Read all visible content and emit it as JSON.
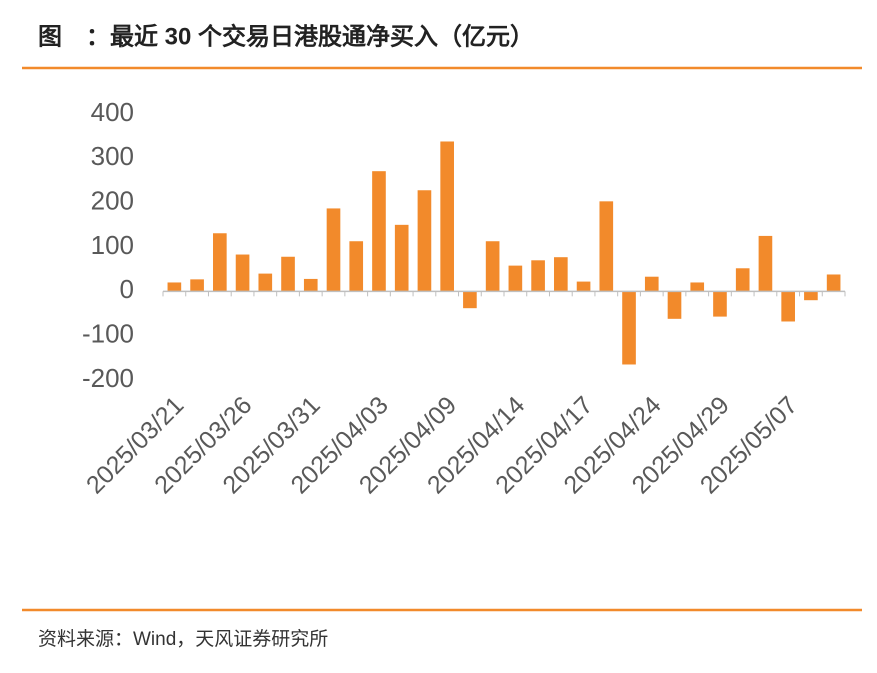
{
  "chart_data": {
    "type": "bar",
    "title": "图　：最近 30 个交易日港股通净买入（亿元）",
    "source": "资料来源：Wind，天风证券研究所",
    "categories": [
      "2025/03/21",
      null,
      null,
      "2025/03/26",
      null,
      null,
      "2025/03/31",
      null,
      null,
      "2025/04/03",
      null,
      null,
      "2025/04/09",
      null,
      null,
      "2025/04/14",
      null,
      null,
      "2025/04/17",
      null,
      null,
      "2025/04/24",
      null,
      null,
      "2025/04/29",
      null,
      null,
      "2025/05/07",
      null,
      null
    ],
    "values": [
      20,
      27,
      131,
      83,
      40,
      78,
      28,
      187,
      113,
      271,
      150,
      228,
      338,
      -38,
      113,
      58,
      70,
      77,
      22,
      203,
      -165,
      33,
      -62,
      20,
      -57,
      52,
      125,
      -68,
      -20,
      38
    ],
    "color": "#f28a2b",
    "ylim": [
      -200,
      400
    ],
    "yticks": [
      -200,
      -100,
      0,
      100,
      200,
      300,
      400
    ],
    "grid": false
  }
}
